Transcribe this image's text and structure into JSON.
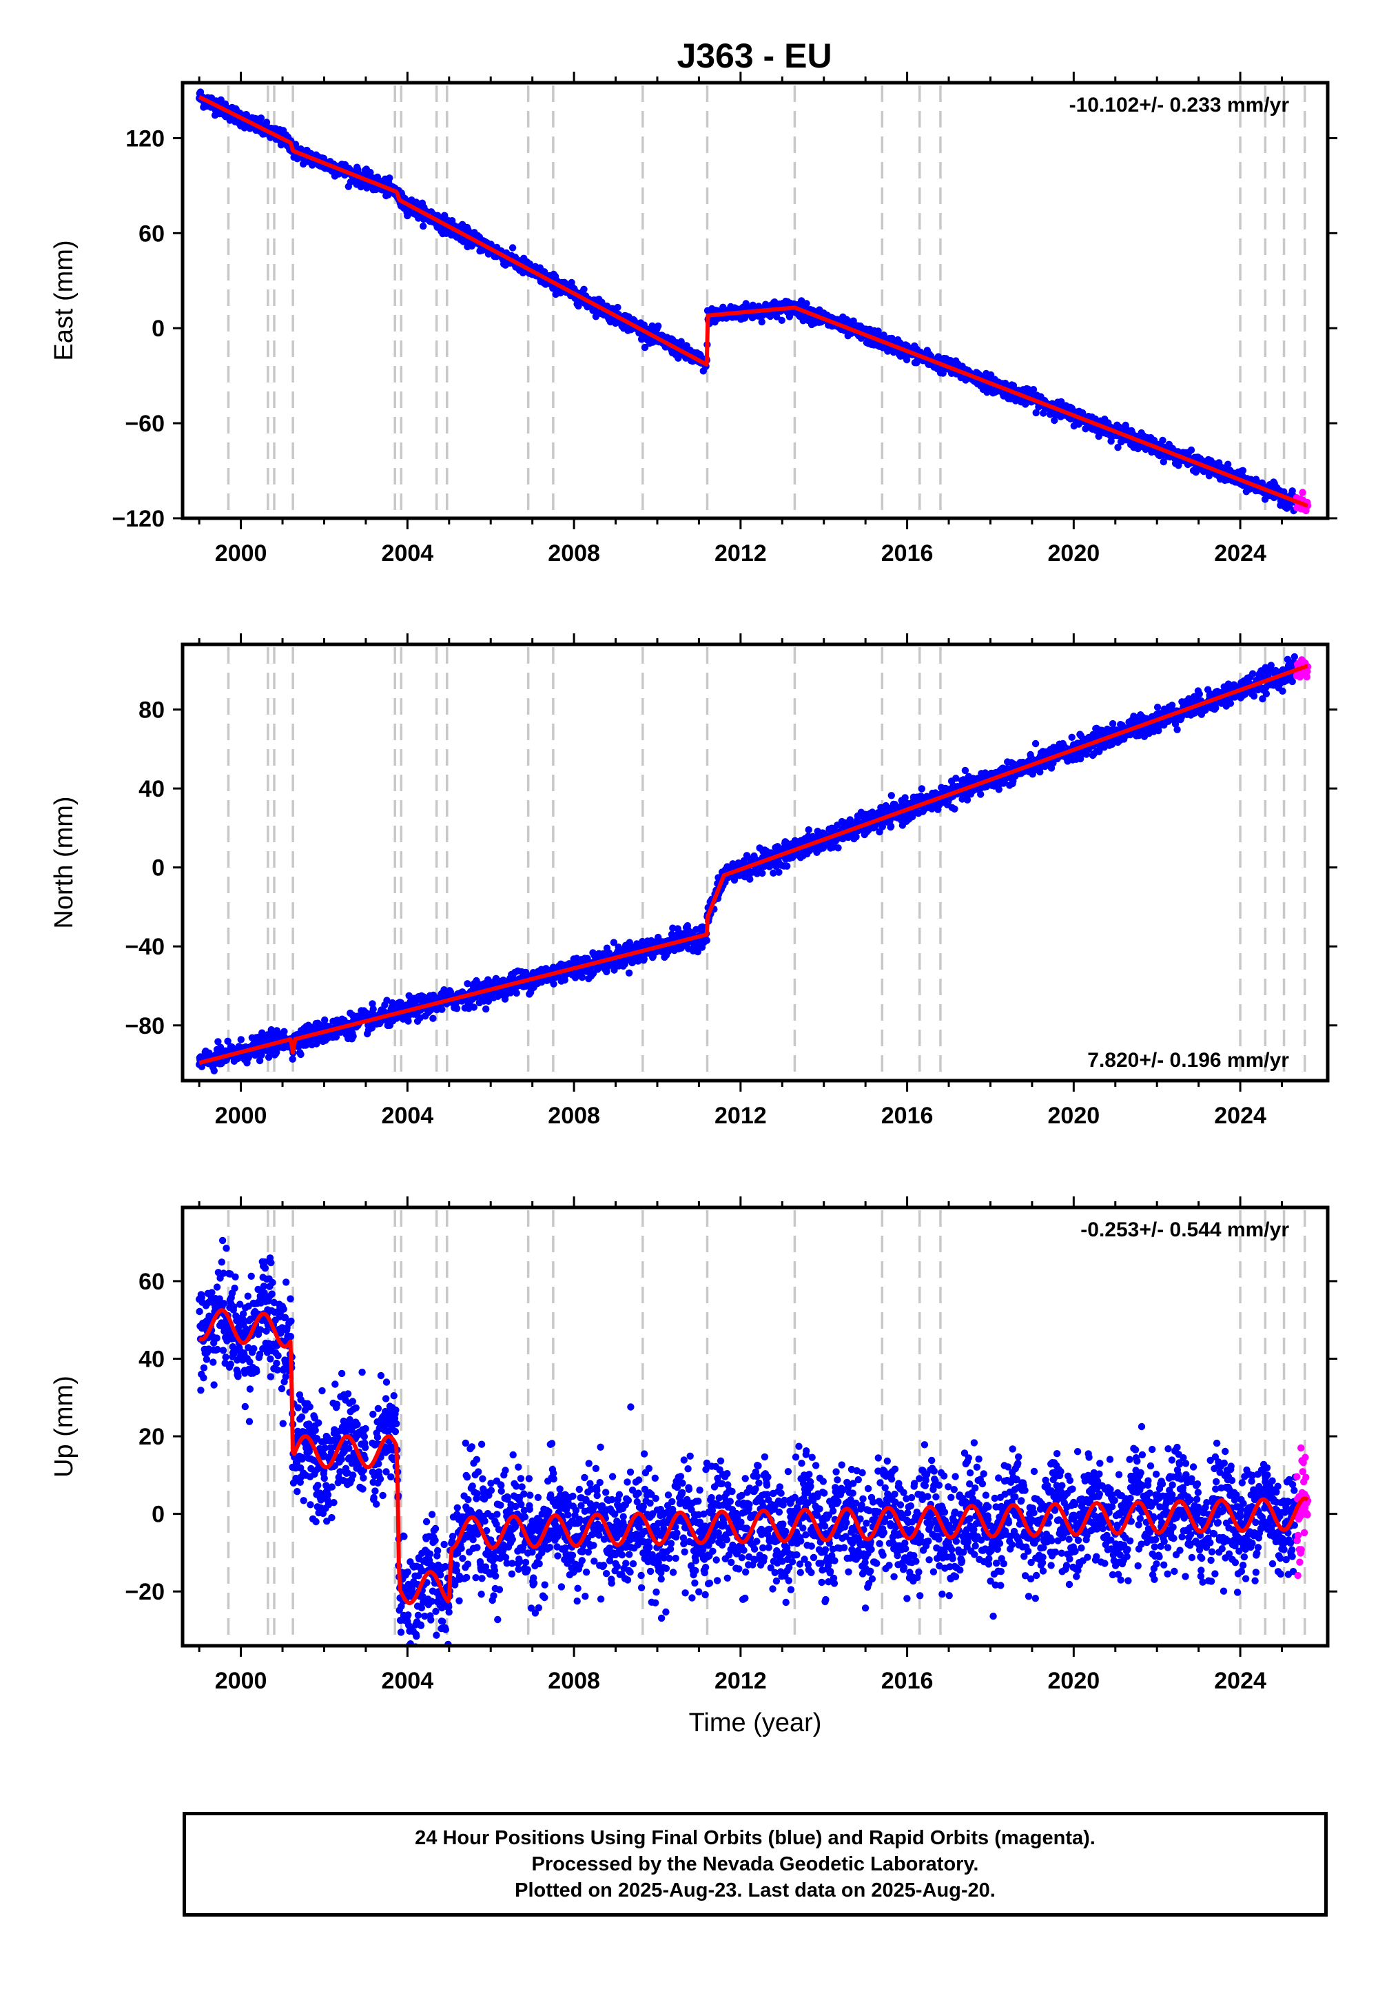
{
  "title": "J363 - EU",
  "colors": {
    "final": "#0000ff",
    "rapid": "#ff00ff",
    "model": "#ff0000",
    "steps": "#c8c8c8"
  },
  "chart_data": [
    {
      "type": "scatter",
      "id": "east",
      "ylabel": "East (mm)",
      "xlim": [
        1998.6,
        2026.1
      ],
      "ylim": [
        -120,
        155
      ],
      "yticks": [
        -120,
        -60,
        0,
        60,
        120
      ],
      "xticks": [
        2000,
        2004,
        2008,
        2012,
        2016,
        2020,
        2024
      ],
      "rate_text": "-10.102+/- 0.233 mm/yr",
      "rate_pos": "top-right",
      "model": [
        [
          1999.0,
          146
        ],
        [
          2001.2,
          117
        ],
        [
          2001.25,
          112
        ],
        [
          2003.75,
          86
        ],
        [
          2003.8,
          81
        ],
        [
          2011.19,
          -23
        ],
        [
          2011.21,
          8
        ],
        [
          2013.3,
          13
        ],
        [
          2025.6,
          -112
        ]
      ],
      "noise": 2.5,
      "rapid_from": 2025.35,
      "lines": [
        1999.7,
        2000.65,
        2000.8,
        2001.25,
        2003.7,
        2003.85,
        2004.7,
        2004.95,
        2006.9,
        2007.5,
        2009.65,
        2011.2,
        2013.3,
        2015.4,
        2016.3,
        2016.8,
        2024.0,
        2024.6,
        2025.05,
        2025.55
      ]
    },
    {
      "type": "scatter",
      "id": "north",
      "ylabel": "North (mm)",
      "xlim": [
        1998.6,
        2026.1
      ],
      "ylim": [
        -108,
        113
      ],
      "yticks": [
        -80,
        -40,
        0,
        40,
        80
      ],
      "xticks": [
        2000,
        2004,
        2008,
        2012,
        2016,
        2020,
        2024
      ],
      "rate_text": "7.820+/- 0.196 mm/yr",
      "rate_pos": "bottom-right",
      "model": [
        [
          1999.0,
          -99
        ],
        [
          2001.2,
          -87
        ],
        [
          2001.25,
          -94
        ],
        [
          2001.3,
          -87
        ],
        [
          2011.19,
          -34
        ],
        [
          2011.21,
          -25
        ],
        [
          2011.6,
          -4
        ],
        [
          2025.6,
          102
        ]
      ],
      "noise": 2.8,
      "rapid_from": 2025.35,
      "lines": [
        1999.7,
        2000.65,
        2000.8,
        2001.25,
        2003.7,
        2003.85,
        2004.7,
        2004.95,
        2006.9,
        2007.5,
        2009.65,
        2011.2,
        2013.3,
        2015.4,
        2016.3,
        2016.8,
        2024.0,
        2024.6,
        2025.05,
        2025.55
      ]
    },
    {
      "type": "scatter",
      "id": "up",
      "ylabel": "Up (mm)",
      "xlabel": "Time (year)",
      "xlim": [
        1998.6,
        2026.1
      ],
      "ylim": [
        -34,
        79
      ],
      "yticks": [
        -20,
        0,
        20,
        40,
        60
      ],
      "xticks": [
        2000,
        2004,
        2008,
        2012,
        2016,
        2020,
        2024
      ],
      "rate_text": "-0.253+/- 0.544 mm/yr",
      "rate_pos": "top-right",
      "model": [
        [
          1999.0,
          49
        ],
        [
          2001.2,
          47
        ],
        [
          2001.25,
          16
        ],
        [
          2003.0,
          16
        ],
        [
          2003.75,
          16
        ],
        [
          2003.8,
          -19
        ],
        [
          2005.0,
          -19
        ],
        [
          2005.05,
          -5
        ],
        [
          2025.6,
          0
        ]
      ],
      "noise": 7,
      "seasonal": 4,
      "rapid_from": 2025.35,
      "lines": [
        1999.7,
        2000.65,
        2000.8,
        2001.25,
        2003.7,
        2003.85,
        2004.7,
        2004.95,
        2006.9,
        2007.5,
        2009.65,
        2011.2,
        2013.3,
        2015.4,
        2016.3,
        2016.8,
        2024.0,
        2024.6,
        2025.05,
        2025.55
      ]
    }
  ],
  "footer": {
    "line1": "24 Hour Positions Using Final Orbits (blue) and Rapid Orbits (magenta).",
    "line2": "Processed by the Nevada Geodetic Laboratory.",
    "line3": "Plotted on 2025-Aug-23. Last data on 2025-Aug-20."
  }
}
